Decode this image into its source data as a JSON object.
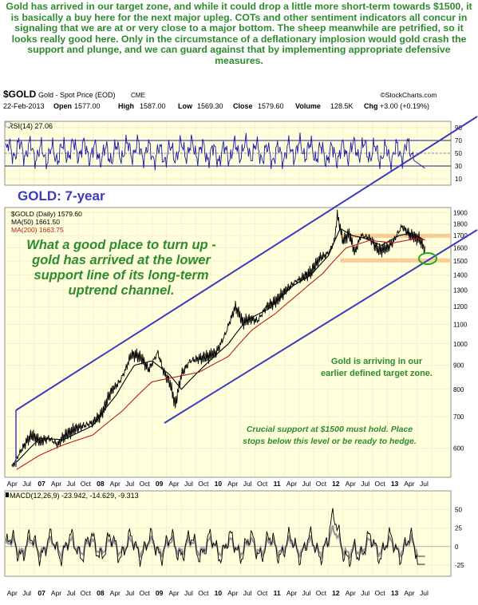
{
  "intro_text": "Gold has arrived in our target zone, and while it could drop a little more short-term towards $1500, it is basically a buy here for the next major upleg. COTs and other sentiment indicators all concur in signaling that we are at or very close to a major bottom. The sheep meanwhile are petrified, so it looks really good here. Only in the circumstance of a deflationary implosion would gold crash the support and plunge, and we can guard against that by implementing appropriate defensive measures.",
  "header": {
    "symbol": "$GOLD",
    "name": "Gold - Spot Price (EOD)",
    "exchange": "CME",
    "source": "©StockCharts.com",
    "date": "22-Feb-2013",
    "open_label": "Open",
    "open": "1577.00",
    "high_label": "High",
    "high": "1587.00",
    "low_label": "Low",
    "low": "1569.30",
    "close_label": "Close",
    "close": "1579.60",
    "volume_label": "Volume",
    "volume": "128.5K",
    "chg_label": "Chg",
    "chg": "+3.00 (+0.19%)"
  },
  "colors": {
    "panel_bg": "#ffffdc",
    "grid": "#c9c9b8",
    "channel": "#3b3bbb",
    "rsi_line": "#1a1aa6",
    "ma50": "#000000",
    "ma200": "#c0181c",
    "price": "#000000",
    "annotation_green": "#2e8b2e",
    "target_zone": "#f5c58a",
    "highlight_circle": "#22aa22",
    "macd_line": "#000000",
    "macd_signal": "#9a9a9a",
    "title_blue": "#3b3bbb"
  },
  "chart_data": [
    {
      "type": "line",
      "panel": "rsi",
      "label": "RSI(14) 27.06",
      "ylim": [
        0,
        100
      ],
      "y_ticks": [
        "90",
        "70",
        "50",
        "30",
        "10"
      ],
      "reference_lines": [
        70,
        30
      ],
      "last_value": 27.06
    },
    {
      "type": "line",
      "panel": "price",
      "title": "GOLD: 7-year",
      "scale": "log",
      "ylim": [
        520,
        1950
      ],
      "y_ticks": [
        "1900",
        "1800",
        "1700",
        "1600",
        "1500",
        "1400",
        "1300",
        "1200",
        "1100",
        "1000",
        "900",
        "800",
        "700",
        "600"
      ],
      "x_ticks": [
        "Apr",
        "Jul",
        "07",
        "Apr",
        "Jul",
        "Oct",
        "08",
        "Apr",
        "Jul",
        "Oct",
        "09",
        "Apr",
        "Jul",
        "Oct",
        "10",
        "Apr",
        "Jul",
        "Oct",
        "11",
        "Apr",
        "Jul",
        "Oct",
        "12",
        "Apr",
        "Jul",
        "Oct",
        "13",
        "Apr",
        "Jul"
      ],
      "legend": [
        {
          "name": "$GOLD (Daily) 1579.60",
          "color": "#000000"
        },
        {
          "name": "MA(50) 1661.50",
          "color": "#000000"
        },
        {
          "name": "MA(200) 1663.75",
          "color": "#c0181c"
        }
      ],
      "series": [
        {
          "name": "$GOLD (Daily)",
          "t": [
            2006.12,
            2006.3,
            2006.45,
            2006.6,
            2006.75,
            2006.9,
            2007.0,
            2007.2,
            2007.35,
            2007.5,
            2007.65,
            2007.8,
            2007.95,
            2008.05,
            2008.15,
            2008.3,
            2008.45,
            2008.6,
            2008.7,
            2008.8,
            2008.9,
            2009.0,
            2009.15,
            2009.3,
            2009.45,
            2009.6,
            2009.75,
            2009.92,
            2010.05,
            2010.15,
            2010.3,
            2010.45,
            2010.6,
            2010.75,
            2010.92,
            2011.05,
            2011.2,
            2011.35,
            2011.5,
            2011.6,
            2011.65,
            2011.75,
            2011.85,
            2011.95,
            2012.05,
            2012.2,
            2012.35,
            2012.5,
            2012.6,
            2012.75,
            2012.85,
            2012.95,
            2013.05,
            2013.14
          ],
          "values": [
            545,
            600,
            640,
            620,
            630,
            610,
            635,
            660,
            670,
            680,
            710,
            790,
            830,
            880,
            950,
            940,
            880,
            960,
            870,
            830,
            740,
            860,
            920,
            930,
            940,
            960,
            1050,
            1200,
            1110,
            1130,
            1120,
            1200,
            1230,
            1290,
            1350,
            1380,
            1420,
            1520,
            1560,
            1650,
            1880,
            1650,
            1720,
            1560,
            1700,
            1680,
            1580,
            1600,
            1650,
            1780,
            1720,
            1690,
            1670,
            1580
          ]
        },
        {
          "name": "MA(50)",
          "t": [
            2006.2,
            2006.6,
            2007.0,
            2007.5,
            2007.9,
            2008.2,
            2008.5,
            2008.8,
            2009.0,
            2009.4,
            2009.8,
            2010.1,
            2010.5,
            2010.9,
            2011.2,
            2011.5,
            2011.7,
            2011.9,
            2012.1,
            2012.4,
            2012.7,
            2012.9,
            2013.14
          ],
          "values": [
            560,
            630,
            625,
            670,
            780,
            900,
            920,
            860,
            800,
            900,
            1000,
            1120,
            1190,
            1330,
            1400,
            1540,
            1760,
            1700,
            1680,
            1620,
            1700,
            1720,
            1661.5
          ]
        },
        {
          "name": "MA(200)",
          "t": [
            2006.2,
            2006.6,
            2007.0,
            2007.5,
            2008.0,
            2008.5,
            2008.9,
            2009.3,
            2009.8,
            2010.2,
            2010.6,
            2011.0,
            2011.4,
            2011.8,
            2012.2,
            2012.6,
            2013.0,
            2013.14
          ],
          "values": [
            540,
            580,
            610,
            640,
            720,
            830,
            850,
            870,
            940,
            1070,
            1160,
            1280,
            1410,
            1600,
            1660,
            1640,
            1675,
            1663.75
          ]
        }
      ],
      "annotations": [
        "What a good place to turn up - gold has arrived at the lower support line of its long-term uptrend channel.",
        "Gold is arriving in  our earlier defined target zone.",
        "Crucial support at $1500 must hold. Place stops below this level or be ready to hedge."
      ],
      "target_zone": [
        1500,
        1700
      ]
    },
    {
      "type": "line",
      "panel": "macd",
      "label": "MACD(12,26,9) -23.942, -14.629, -9.313",
      "ylim": [
        -40,
        75
      ],
      "y_ticks": [
        "50",
        "25",
        "0",
        "-25"
      ],
      "values": [
        -23.942,
        -14.629,
        -9.313
      ]
    }
  ]
}
